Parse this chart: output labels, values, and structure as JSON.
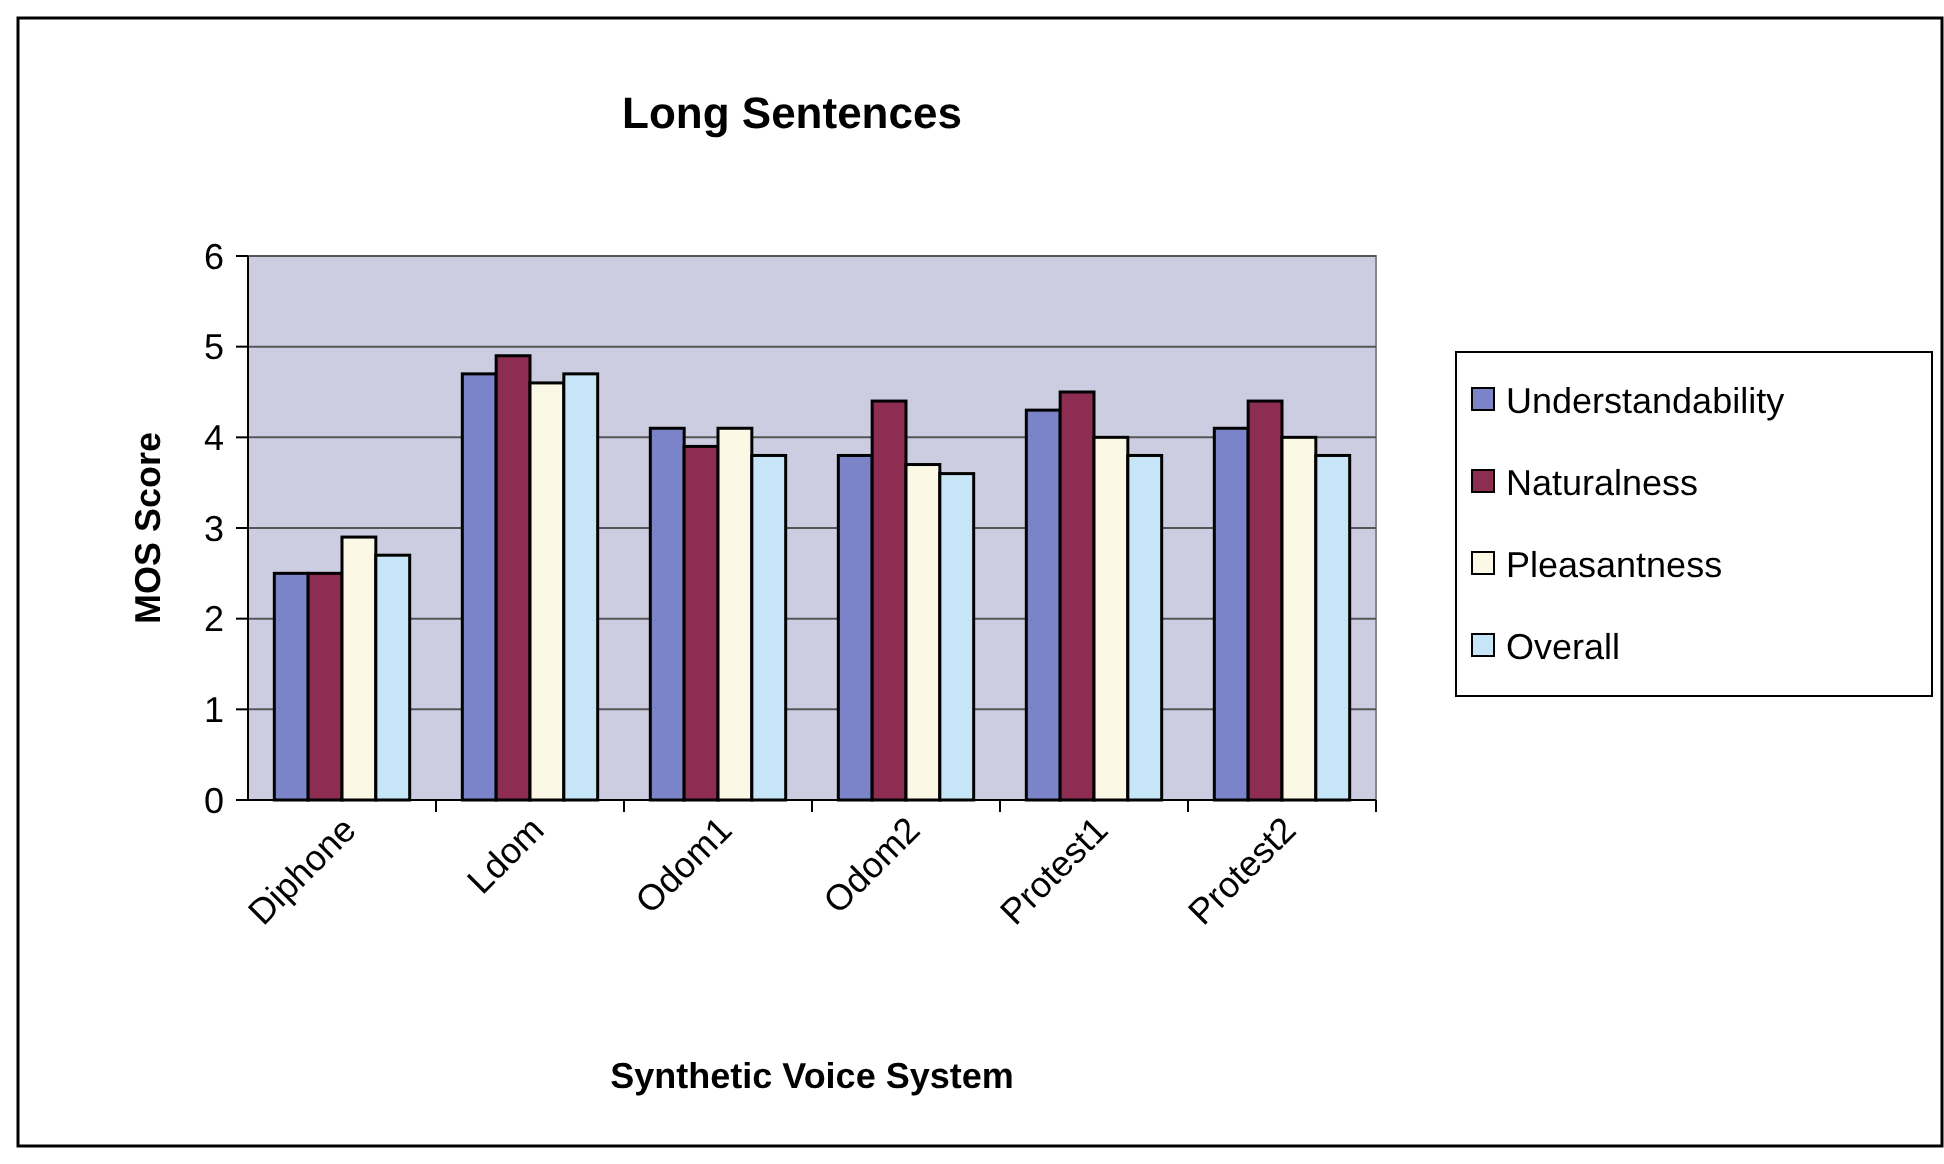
{
  "chart_data": {
    "type": "bar",
    "title": "Long Sentences",
    "xlabel": "Synthetic Voice System",
    "ylabel": "MOS Score",
    "categories": [
      "Diphone",
      "Ldom",
      "Odom1",
      "Odom2",
      "Protest1",
      "Protest2"
    ],
    "series": [
      {
        "name": "Understandability",
        "color": "#7b84c8",
        "values": [
          2.5,
          4.7,
          4.1,
          3.8,
          4.3,
          4.1
        ]
      },
      {
        "name": "Naturalness",
        "color": "#8e2d52",
        "values": [
          2.5,
          4.9,
          3.9,
          4.4,
          4.5,
          4.4
        ]
      },
      {
        "name": "Pleasantness",
        "color": "#fbf9e6",
        "values": [
          2.9,
          4.6,
          4.1,
          3.7,
          4.0,
          4.0
        ]
      },
      {
        "name": "Overall",
        "color": "#c6e6f8",
        "values": [
          2.7,
          4.7,
          3.8,
          3.6,
          3.8,
          3.8
        ]
      }
    ],
    "ylim": [
      0,
      6
    ],
    "yticks": [
      0,
      1,
      2,
      3,
      4,
      5,
      6
    ],
    "grid": "y",
    "legend": "right"
  }
}
